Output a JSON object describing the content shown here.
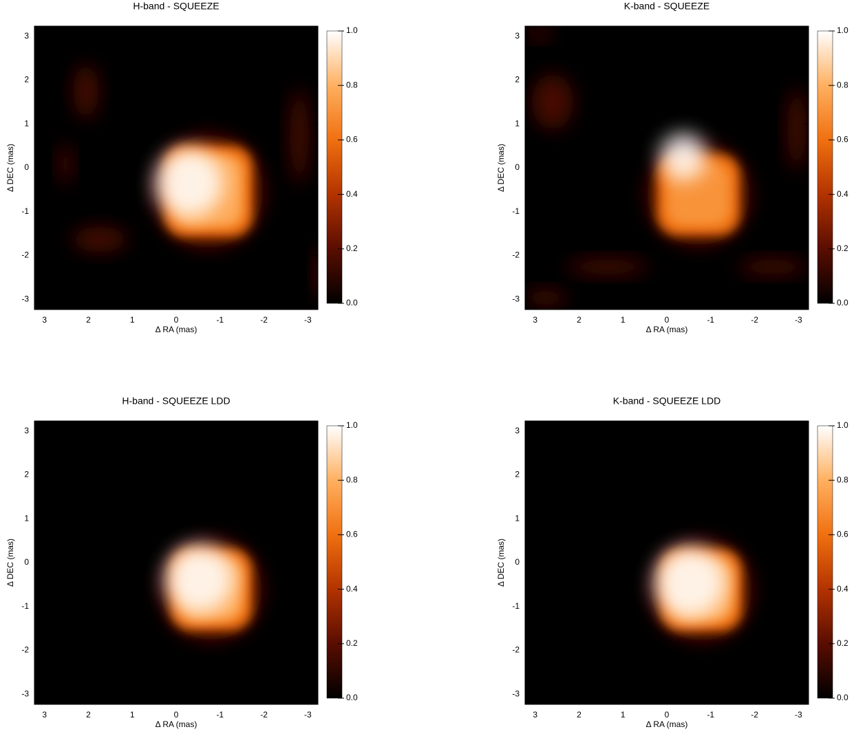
{
  "chart_data": [
    {
      "type": "image",
      "title": "H-band - SQUEEZE",
      "xlabel": "Δ RA (mas)",
      "ylabel": "Δ DEC (mas)",
      "xlim": [
        3.23,
        -3.23
      ],
      "ylim": [
        -3.23,
        3.23
      ],
      "xticks": [
        3,
        2,
        1,
        0,
        -1,
        -2,
        -3
      ],
      "yticks": [
        -3,
        -2,
        -1,
        0,
        1,
        2,
        3
      ],
      "colorbar_lim": [
        0,
        1
      ],
      "colorbar_ticks": [
        {
          "value": 0,
          "label": "0.0"
        },
        {
          "value": 0.2,
          "label": "0.2"
        },
        {
          "value": 0.4,
          "label": "0.4"
        },
        {
          "value": 0.6,
          "label": "0.6"
        },
        {
          "value": 0.8,
          "label": "0.8"
        },
        {
          "value": 1,
          "label": "1.0"
        }
      ],
      "colormap": [
        "#000000",
        "#5a0d00",
        "#b33300",
        "#f07010",
        "#ffb060",
        "#ffffff"
      ]
    },
    {
      "type": "image",
      "title": "K-band - SQUEEZE",
      "xlabel": "Δ RA (mas)",
      "ylabel": "Δ DEC (mas)",
      "xlim": [
        3.23,
        -3.23
      ],
      "ylim": [
        -3.23,
        3.23
      ],
      "xticks": [
        3,
        2,
        1,
        0,
        -1,
        -2,
        -3
      ],
      "yticks": [
        -3,
        -2,
        -1,
        0,
        1,
        2,
        3
      ],
      "colorbar_lim": [
        0,
        1
      ],
      "colorbar_ticks": [
        {
          "value": 0,
          "label": "0.0"
        },
        {
          "value": 0.2,
          "label": "0.2"
        },
        {
          "value": 0.4,
          "label": "0.4"
        },
        {
          "value": 0.6,
          "label": "0.6"
        },
        {
          "value": 0.8,
          "label": "0.8"
        },
        {
          "value": 1,
          "label": "1.0"
        }
      ],
      "colormap": [
        "#000000",
        "#5a0d00",
        "#b33300",
        "#f07010",
        "#ffb060",
        "#ffffff"
      ]
    },
    {
      "type": "image",
      "title": "H-band - SQUEEZE LDD",
      "xlabel": "Δ RA (mas)",
      "ylabel": "Δ DEC (mas)",
      "xlim": [
        3.23,
        -3.23
      ],
      "ylim": [
        -3.23,
        3.23
      ],
      "xticks": [
        3,
        2,
        1,
        0,
        -1,
        -2,
        -3
      ],
      "yticks": [
        -3,
        -2,
        -1,
        0,
        1,
        2,
        3
      ],
      "colorbar_lim": [
        0,
        1
      ],
      "colorbar_ticks": [
        {
          "value": 0,
          "label": "0.0"
        },
        {
          "value": 0.2,
          "label": "0.2"
        },
        {
          "value": 0.4,
          "label": "0.4"
        },
        {
          "value": 0.6,
          "label": "0.6"
        },
        {
          "value": 0.8,
          "label": "0.8"
        },
        {
          "value": 1,
          "label": "1.0"
        }
      ],
      "colormap": [
        "#000000",
        "#5a0d00",
        "#b33300",
        "#f07010",
        "#ffb060",
        "#ffffff"
      ]
    },
    {
      "type": "image",
      "title": "K-band - SQUEEZE LDD",
      "xlabel": "Δ RA (mas)",
      "ylabel": "Δ DEC (mas)",
      "xlim": [
        3.23,
        -3.23
      ],
      "ylim": [
        -3.23,
        3.23
      ],
      "xticks": [
        3,
        2,
        1,
        0,
        -1,
        -2,
        -3
      ],
      "yticks": [
        -3,
        -2,
        -1,
        0,
        1,
        2,
        3
      ],
      "colorbar_lim": [
        0,
        1
      ],
      "colorbar_ticks": [
        {
          "value": 0,
          "label": "0.0"
        },
        {
          "value": 0.2,
          "label": "0.2"
        },
        {
          "value": 0.4,
          "label": "0.4"
        },
        {
          "value": 0.6,
          "label": "0.6"
        },
        {
          "value": 0.8,
          "label": "0.8"
        },
        {
          "value": 1,
          "label": "1.0"
        }
      ],
      "colormap": [
        "#000000",
        "#5a0d00",
        "#b33300",
        "#f07010",
        "#ffb060",
        "#ffffff"
      ]
    }
  ]
}
